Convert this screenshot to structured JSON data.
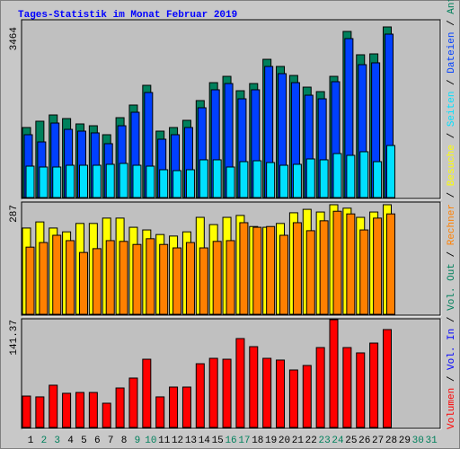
{
  "chart_data": {
    "type": "bar",
    "title": "Tages-Statistik im Monat Februar 2019",
    "categories": [
      "1",
      "2",
      "3",
      "4",
      "5",
      "6",
      "7",
      "8",
      "9",
      "10",
      "11",
      "12",
      "13",
      "14",
      "15",
      "16",
      "17",
      "18",
      "19",
      "20",
      "21",
      "22",
      "23",
      "24",
      "25",
      "26",
      "27",
      "28",
      "29",
      "30",
      "31"
    ],
    "category_colors": [
      "#000000",
      "#00805c",
      "#00805c",
      "#000000",
      "#000000",
      "#000000",
      "#000000",
      "#000000",
      "#00805c",
      "#00805c",
      "#000000",
      "#000000",
      "#000000",
      "#000000",
      "#000000",
      "#00805c",
      "#00805c",
      "#000000",
      "#000000",
      "#000000",
      "#000000",
      "#000000",
      "#00805c",
      "#00805c",
      "#000000",
      "#000000",
      "#000000",
      "#000000",
      "#000000",
      "#00805c",
      "#00805c"
    ],
    "legend_separator": "/",
    "legend": [
      {
        "name": "Volumen",
        "color": "#ff0000"
      },
      {
        "name": "Vol. In",
        "color": "#0000ff"
      },
      {
        "name": "Vol. Out",
        "color": "#00805c"
      },
      {
        "name": "Rechner",
        "color": "#ff8000"
      },
      {
        "name": "Besuche",
        "color": "#ffff00"
      },
      {
        "name": "Seiten",
        "color": "#00e0ff"
      },
      {
        "name": "Dateien",
        "color": "#0040ff"
      },
      {
        "name": "Anfragen",
        "color": "#00805c"
      }
    ],
    "panels": [
      {
        "ylim": [
          0,
          3464
        ],
        "yticks": [
          3464
        ],
        "series": [
          {
            "color": "#00805c",
            "values": [
              1422,
              1550,
              1677,
              1604,
              1495,
              1458,
              1276,
              1622,
              1878,
              2279,
              1349,
              1422,
              1568,
              1969,
              2333,
              2461,
              2169,
              2315,
              2807,
              2662,
              2479,
              2242,
              2151,
              2461,
              3373,
              2899,
              2917,
              3464,
              null,
              null,
              null
            ]
          },
          {
            "color": "#0040ff",
            "values": [
              1276,
              1130,
              1513,
              1385,
              1349,
              1313,
              1094,
              1458,
              1732,
              2133,
              1185,
              1276,
              1422,
              1823,
              2188,
              2315,
              2005,
              2188,
              2662,
              2516,
              2333,
              2078,
              2005,
              2352,
              3227,
              2698,
              2735,
              3318,
              null,
              null,
              null
            ]
          },
          {
            "color": "#00e0ff",
            "values": [
              638,
              620,
              620,
              656,
              656,
              656,
              675,
              693,
              656,
              638,
              565,
              547,
              565,
              766,
              766,
              620,
              729,
              747,
              711,
              656,
              675,
              784,
              766,
              893,
              857,
              930,
              729,
              1057,
              null,
              null,
              null
            ]
          }
        ]
      },
      {
        "ylim": [
          0,
          287
        ],
        "yticks": [
          287
        ],
        "series": [
          {
            "color": "#ffff00",
            "values": [
              226,
              242,
              226,
              216,
              238,
              238,
              252,
              252,
              228,
              221,
              209,
              205,
              216,
              254,
              235,
              254,
              259,
              230,
              228,
              238,
              266,
              275,
              268,
              287,
              278,
              254,
              268,
              287,
              null,
              null,
              null
            ]
          },
          {
            "color": "#ff8000",
            "values": [
              176,
              188,
              207,
              193,
              162,
              172,
              193,
              191,
              183,
              198,
              183,
              174,
              188,
              174,
              191,
              193,
              240,
              228,
              230,
              207,
              240,
              219,
              245,
              270,
              263,
              221,
              252,
              263,
              null,
              null,
              null
            ]
          }
        ]
      },
      {
        "ylim": [
          0,
          141.37
        ],
        "yticks": [
          141.37
        ],
        "series": [
          {
            "color": "#ff0000",
            "values": [
              41.2,
              40.1,
              55.4,
              44.8,
              45.9,
              45.9,
              31.8,
              51.8,
              64.8,
              89.5,
              40.1,
              53.0,
              53.0,
              83.6,
              90.7,
              89.5,
              116.6,
              106.0,
              90.7,
              88.4,
              75.4,
              81.3,
              104.8,
              141.37,
              104.8,
              97.8,
              110.7,
              128.4,
              null,
              null,
              null
            ]
          }
        ]
      }
    ]
  }
}
